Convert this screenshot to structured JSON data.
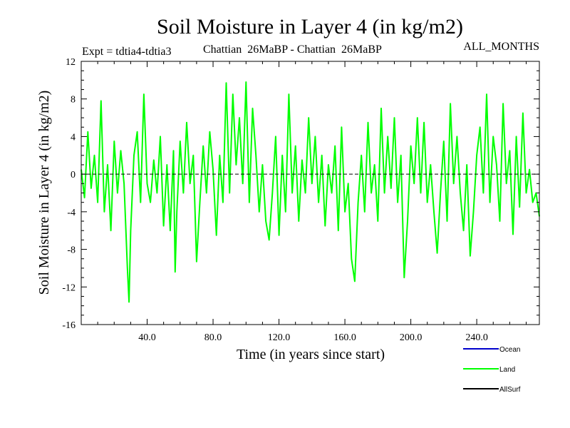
{
  "chart_data": {
    "type": "line",
    "title": "Soil Moisture in Layer 4 (in kg/m2)",
    "subtitle_left": "Expt = tdtia4-tdtia3",
    "subtitle_center": "Chattian  26MaBP - Chattian  26MaBP",
    "subtitle_right": "ALL_MONTHS",
    "xlabel": "Time (in years since start)",
    "ylabel": "Soil Moisture in Layer 4 (in kg/m2)",
    "xlim": [
      0,
      278
    ],
    "ylim": [
      -16,
      12
    ],
    "x_ticks": [
      40,
      80,
      120,
      160,
      200,
      240
    ],
    "x_tick_labels": [
      "40.0",
      "80.0",
      "120.0",
      "160.0",
      "200.0",
      "240.0"
    ],
    "y_ticks": [
      -16,
      -12,
      -8,
      -4,
      0,
      4,
      8,
      12
    ],
    "y_tick_labels": [
      "-16",
      "-12",
      "-8",
      "-4",
      "0",
      "4",
      "8",
      "12"
    ],
    "zero_line": 0,
    "legend_position": "bottom-right",
    "series": [
      {
        "name": "Ocean",
        "color": "#0000cc",
        "values": []
      },
      {
        "name": "Land",
        "color": "#00ff00",
        "x": [
          0,
          2,
          4,
          6,
          8,
          10,
          12,
          14,
          16,
          18,
          20,
          22,
          24,
          26,
          28,
          29,
          30,
          32,
          34,
          36,
          38,
          40,
          42,
          44,
          46,
          48,
          50,
          52,
          54,
          56,
          57,
          58,
          60,
          62,
          64,
          66,
          68,
          70,
          72,
          74,
          76,
          78,
          80,
          82,
          84,
          86,
          88,
          90,
          92,
          94,
          96,
          98,
          100,
          102,
          104,
          106,
          108,
          110,
          112,
          114,
          116,
          118,
          120,
          122,
          124,
          126,
          128,
          130,
          132,
          134,
          136,
          138,
          140,
          142,
          144,
          146,
          148,
          150,
          152,
          154,
          156,
          158,
          160,
          162,
          164,
          166,
          168,
          170,
          172,
          174,
          176,
          178,
          180,
          182,
          184,
          186,
          188,
          190,
          192,
          194,
          196,
          198,
          200,
          202,
          204,
          206,
          208,
          210,
          212,
          214,
          216,
          218,
          220,
          222,
          224,
          226,
          228,
          230,
          232,
          234,
          236,
          238,
          240,
          242,
          244,
          246,
          248,
          250,
          252,
          254,
          256,
          258,
          260,
          262,
          264,
          266,
          268,
          270,
          272,
          274,
          276,
          278
        ],
        "values": [
          0.5,
          -2.5,
          4.5,
          -1.5,
          2.0,
          -3.0,
          7.8,
          -4.0,
          1.0,
          -6.0,
          3.5,
          -2.0,
          2.5,
          -1.0,
          -10.0,
          -13.6,
          -6.0,
          2.0,
          4.5,
          -3.0,
          8.5,
          -1.0,
          -3.0,
          1.5,
          -2.0,
          4.0,
          -5.5,
          1.0,
          -6.0,
          2.5,
          -10.4,
          -4.0,
          3.5,
          -2.0,
          5.5,
          -1.0,
          2.0,
          -9.3,
          -3.0,
          3.0,
          -2.0,
          4.5,
          0.5,
          -6.5,
          2.0,
          -3.0,
          9.7,
          -2.0,
          8.5,
          1.0,
          6.0,
          -1.0,
          9.8,
          -3.0,
          7.0,
          2.0,
          -4.0,
          1.0,
          -5.0,
          -7.0,
          -2.0,
          4.0,
          -6.5,
          2.0,
          -4.0,
          8.5,
          -2.0,
          3.0,
          -5.0,
          1.5,
          -2.0,
          6.0,
          -1.0,
          4.0,
          -3.0,
          2.0,
          -5.5,
          1.0,
          -2.0,
          3.0,
          -6.0,
          5.0,
          -4.0,
          -1.0,
          -9.0,
          -11.4,
          -3.0,
          2.0,
          -4.0,
          5.5,
          -2.0,
          1.0,
          -5.0,
          7.0,
          -2.0,
          4.0,
          -1.5,
          6.0,
          -3.0,
          2.0,
          -11.0,
          -5.0,
          3.0,
          -1.0,
          6.0,
          -2.0,
          5.5,
          -3.0,
          1.0,
          -4.0,
          -8.4,
          -2.0,
          3.5,
          -5.0,
          7.5,
          -1.0,
          4.0,
          -2.0,
          -6.0,
          1.0,
          -8.7,
          -4.0,
          2.0,
          5.0,
          -2.0,
          8.5,
          -3.0,
          4.0,
          1.0,
          -5.0,
          7.5,
          -1.0,
          2.5,
          -6.4,
          4.0,
          -3.5,
          6.5,
          -2.0,
          0.5,
          -3.0,
          -2.0,
          -4.5
        ]
      },
      {
        "name": "AllSurf",
        "color": "#000000",
        "values": []
      }
    ]
  }
}
